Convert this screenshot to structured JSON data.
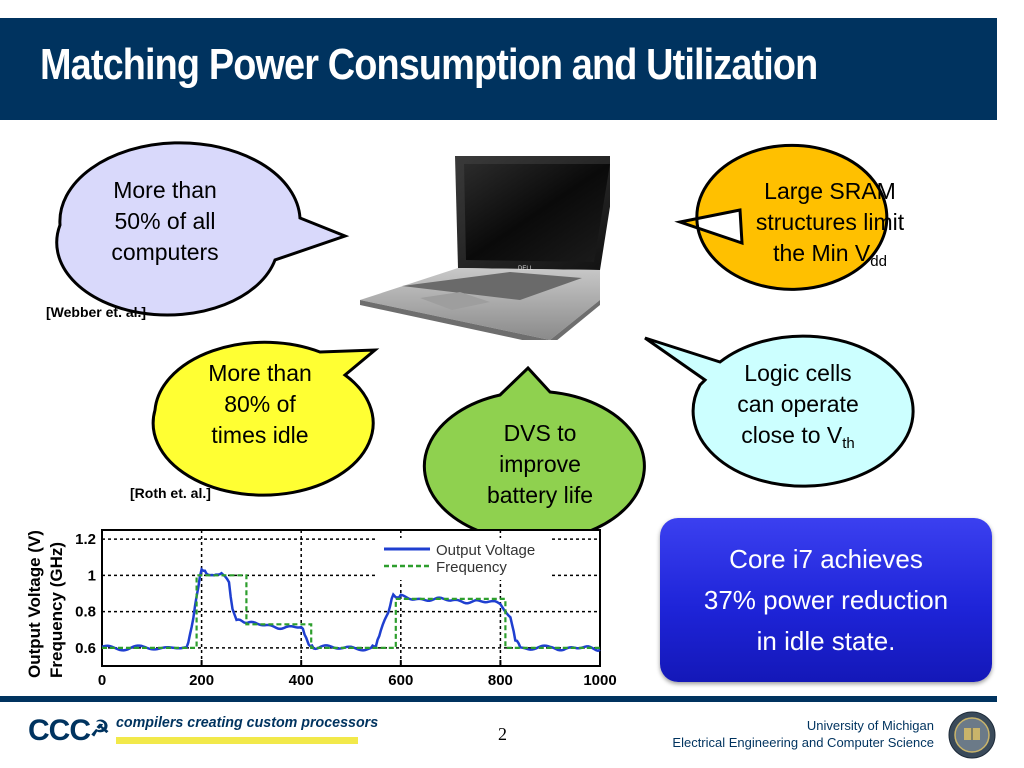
{
  "slide": {
    "title": "Matching Power Consumption and Utilization",
    "page_number": "2"
  },
  "bubbles": {
    "b1": {
      "line1": "More than",
      "line2": "50% of all",
      "line3": "computers",
      "color": "#d9d9fb"
    },
    "b2": {
      "line1": "Large SRAM",
      "line2": "structures limit",
      "line3_main": "the Min V",
      "line3_sub": "dd",
      "color": "#ffc000"
    },
    "b3": {
      "line1": "More than",
      "line2": "80% of",
      "line3": "times idle",
      "color": "#ffff33"
    },
    "b4": {
      "line1": "DVS to",
      "line2": "improve",
      "line3": "battery life",
      "color": "#8fd14f"
    },
    "b5": {
      "line1": "Logic cells",
      "line2": "can operate",
      "line3_main": "close to V",
      "line3_sub": "th",
      "color": "#ccffff"
    }
  },
  "references": {
    "webber": "[Webber et. al.]",
    "roth": "[Roth et. al.]"
  },
  "laptop": {
    "brand": "DELL"
  },
  "chart_data": {
    "type": "line",
    "ylabel_line1": "Output Voltage (V)",
    "ylabel_line2": "Frequency (GHz)",
    "xlim": [
      0,
      1000
    ],
    "ylim": [
      0.5,
      1.25
    ],
    "xticks": [
      "0",
      "200",
      "400",
      "600",
      "800",
      "1000"
    ],
    "yticks": [
      "0.6",
      "0.8",
      "1",
      "1.2"
    ],
    "grid": true,
    "legend_position": "top-right",
    "series": [
      {
        "name": "Output Voltage",
        "color": "#1f3fd0",
        "style": "solid",
        "x": [
          0,
          170,
          180,
          190,
          200,
          210,
          225,
          240,
          255,
          262,
          270,
          300,
          350,
          400,
          410,
          415,
          425,
          440,
          480,
          540,
          550,
          560,
          575,
          585,
          590,
          600,
          650,
          700,
          750,
          800,
          820,
          830,
          840,
          860,
          900,
          950,
          1000
        ],
        "y": [
          0.6,
          0.6,
          0.72,
          0.88,
          1.03,
          1.02,
          1.0,
          1.02,
          0.96,
          0.82,
          0.75,
          0.73,
          0.72,
          0.71,
          0.66,
          0.61,
          0.6,
          0.6,
          0.6,
          0.6,
          0.62,
          0.7,
          0.8,
          0.89,
          0.88,
          0.88,
          0.87,
          0.86,
          0.86,
          0.84,
          0.78,
          0.65,
          0.6,
          0.6,
          0.6,
          0.6,
          0.59
        ]
      },
      {
        "name": "Frequency",
        "color": "#2d9e2d",
        "style": "dashed",
        "x": [
          0,
          190,
          190,
          290,
          290,
          420,
          420,
          590,
          590,
          810,
          810,
          1000
        ],
        "y": [
          0.6,
          0.6,
          1.0,
          1.0,
          0.73,
          0.73,
          0.6,
          0.6,
          0.87,
          0.87,
          0.6,
          0.6
        ]
      }
    ]
  },
  "callout": {
    "line1": "Core i7 achieves",
    "line2": "37% power reduction",
    "line3": "in idle state."
  },
  "footer": {
    "logo_text": "CCC",
    "tagline": "compilers creating custom processors",
    "univ_line1": "University of Michigan",
    "univ_line2": "Electrical Engineering and Computer Science"
  }
}
